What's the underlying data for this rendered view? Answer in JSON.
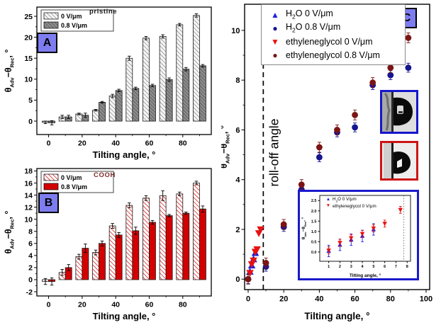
{
  "colors": {
    "badge_fill": "#7d7df0",
    "badge_border": "#000000",
    "bar_red": "#d40000",
    "hatch_gray_bg": "#f5f5f5",
    "hatch_gray_fg": "#666666",
    "dark_bar_bg": "#8c8c8c",
    "dark_bar_fg": "#3a3a3a",
    "water_blue_border": "#1616cc",
    "eg_red_border": "#cc1414",
    "inset_border": "#1a1acc",
    "rolloff_text": "#1a1aee",
    "blue_triangle": "#2121d8",
    "navy_circle": "#15158e",
    "red_triangle": "#e81212",
    "dark_red_circle": "#7c1414",
    "cooh_text": "#7d2b2b",
    "pristine_text": "#1a1a1a"
  },
  "panels": {
    "a": {
      "badge": "A",
      "annotation": "pristine"
    },
    "b": {
      "badge": "B",
      "annotation": "COOH"
    },
    "c": {
      "badge": "C"
    }
  },
  "droplets": {
    "water": {
      "name": "water droplet on tilted surface"
    },
    "ethyleneglycol": {
      "name": "ethyleneglycol droplet on tilted surface"
    }
  },
  "chart_data": [
    {
      "id": "panel-a",
      "type": "bar",
      "title": "pristine",
      "categories": [
        0,
        10,
        20,
        30,
        40,
        50,
        60,
        70,
        80,
        90
      ],
      "series": [
        {
          "name": "0 V/μm",
          "style": "hatch-light",
          "values": [
            -0.3,
            1.0,
            1.7,
            2.6,
            6.0,
            15.0,
            19.8,
            20.2,
            23.0,
            25.2
          ],
          "errors": [
            0.3,
            0.4,
            0.2,
            0.2,
            0.4,
            0.5,
            0.4,
            0.4,
            0.3,
            0.4
          ]
        },
        {
          "name": "0.8 V/μm",
          "style": "hatch-dark",
          "values": [
            -0.4,
            1.0,
            1.4,
            4.5,
            7.3,
            7.8,
            8.5,
            9.9,
            12.4,
            13.2
          ],
          "errors": [
            0.5,
            0.4,
            0.5,
            0.2,
            0.3,
            0.3,
            0.3,
            0.4,
            0.4,
            0.3
          ]
        }
      ],
      "xlabel": "Tilting angle, °",
      "ylabel_parts": [
        {
          "t": "θ"
        },
        {
          "t": "Adv",
          "sub": true
        },
        {
          "t": "−θ"
        },
        {
          "t": "Rec",
          "sub": true
        },
        {
          "t": ", °"
        }
      ],
      "xlim": [
        -7,
        97
      ],
      "ylim": [
        -3.2,
        27.2
      ],
      "yticks": [
        0,
        5,
        10,
        15,
        20,
        25
      ],
      "yminor": [
        2.5,
        7.5,
        12.5,
        17.5,
        22.5
      ],
      "xticks": [
        0,
        20,
        40,
        60,
        80
      ],
      "xminor": [
        10,
        30,
        50,
        70,
        90
      ],
      "legend_box": true
    },
    {
      "id": "panel-b",
      "type": "bar",
      "title": "COOH",
      "categories": [
        0,
        10,
        20,
        30,
        40,
        50,
        60,
        70,
        80,
        90
      ],
      "series": [
        {
          "name": "0 V/μm",
          "style": "hatch-red",
          "values": [
            -0.3,
            1.2,
            3.8,
            4.5,
            8.9,
            12.3,
            13.5,
            13.9,
            14.2,
            16.0
          ],
          "errors": [
            0.5,
            0.5,
            0.4,
            0.4,
            0.4,
            0.4,
            0.4,
            0.8,
            0.3,
            0.3
          ]
        },
        {
          "name": "0.8 V/μm",
          "style": "solid-red",
          "values": [
            -0.3,
            2.0,
            5.2,
            6.0,
            7.4,
            8.1,
            9.5,
            10.6,
            11.0,
            11.7
          ],
          "errors": [
            0.6,
            0.5,
            0.7,
            0.4,
            0.4,
            0.6,
            0.3,
            0.2,
            0.2,
            0.5
          ]
        }
      ],
      "xlabel": "Tilting angle, °",
      "ylabel_parts": [
        {
          "t": "θ"
        },
        {
          "t": "Adv",
          "sub": true
        },
        {
          "t": "−θ"
        },
        {
          "t": "Rec",
          "sub": true
        },
        {
          "t": ", °"
        }
      ],
      "xlim": [
        -7,
        97
      ],
      "ylim": [
        -2.7,
        18.4
      ],
      "yticks": [
        -2,
        0,
        2,
        4,
        6,
        8,
        10,
        12,
        14,
        16,
        18
      ],
      "yminor": [
        -1,
        1,
        3,
        5,
        7,
        9,
        11,
        13,
        15,
        17
      ],
      "xticks": [
        0,
        20,
        40,
        60,
        80
      ],
      "xminor": [
        10,
        30,
        50,
        70,
        90
      ],
      "legend_box": true
    },
    {
      "id": "panel-c",
      "type": "scatter",
      "series": [
        {
          "marker": "triangle-up",
          "color_key": "blue_triangle",
          "label_parts": [
            {
              "t": "H"
            },
            {
              "t": "2",
              "sub": true
            },
            {
              "t": "O 0 V/μm"
            }
          ],
          "x": [
            1,
            2,
            3,
            4
          ],
          "y": [
            0.3,
            0.55,
            0.8,
            1.05
          ],
          "err": 0
        },
        {
          "marker": "circle",
          "color_key": "navy_circle",
          "label_parts": [
            {
              "t": "H"
            },
            {
              "t": "2",
              "sub": true
            },
            {
              "t": "O 0.8 V/μm"
            }
          ],
          "x": [
            0,
            10,
            20,
            30,
            40,
            50,
            60,
            70,
            80,
            90
          ],
          "y": [
            0.0,
            0.5,
            2.1,
            3.6,
            4.9,
            5.9,
            6.1,
            7.8,
            8.2,
            8.5
          ],
          "err": 0.18
        },
        {
          "marker": "triangle-down",
          "color_key": "red_triangle",
          "label_parts": [
            {
              "t": "ethyleneglycol 0 V/μm"
            }
          ],
          "x": [
            1,
            2,
            3,
            4,
            5,
            6,
            7
          ],
          "y": [
            0.25,
            0.6,
            0.75,
            1.1,
            1.2,
            1.85,
            2.0
          ],
          "err": 0
        },
        {
          "marker": "circle",
          "color_key": "dark_red_circle",
          "label_parts": [
            {
              "t": "ethyleneglycol 0.8 V/μm"
            }
          ],
          "x": [
            0,
            10,
            20,
            30,
            40,
            50,
            60,
            70,
            80,
            90
          ],
          "y": [
            0.0,
            0.65,
            2.2,
            3.8,
            5.3,
            6.0,
            6.6,
            7.9,
            8.5,
            9.7
          ],
          "err": 0.2
        }
      ],
      "vline": {
        "x": 8.5,
        "style": "dashed",
        "color": "#000000",
        "label": "roll-off angle",
        "label_color_key": "rolloff_text"
      },
      "xlabel": "Tilting angle, °",
      "ylabel_parts": [
        {
          "t": "θ"
        },
        {
          "t": "Adv",
          "sub": true
        },
        {
          "t": "−θ"
        },
        {
          "t": "Rec",
          "sub": true
        },
        {
          "t": ", °"
        }
      ],
      "xlim": [
        -2,
        102
      ],
      "ylim": [
        -0.42,
        11.05
      ],
      "yticks": [
        0,
        2,
        4,
        6,
        8,
        10
      ],
      "yminor": [
        1,
        3,
        5,
        7,
        9
      ],
      "xticks": [
        0,
        20,
        40,
        60,
        80,
        100
      ],
      "xminor": [
        10,
        30,
        50,
        70,
        90
      ],
      "legend_position": "top-left-overlay"
    },
    {
      "id": "panel-c-inset",
      "type": "scatter",
      "series": [
        {
          "marker": "triangle-up",
          "color_key": "blue_triangle",
          "label_parts": [
            {
              "t": "H"
            },
            {
              "t": "2",
              "sub": true
            },
            {
              "t": "O 0 V/μm"
            }
          ],
          "x": [
            1,
            2,
            3,
            4,
            5
          ],
          "y": [
            0.05,
            0.35,
            0.6,
            0.78,
            1.1
          ],
          "err": 0.28
        },
        {
          "marker": "triangle-down",
          "color_key": "red_triangle",
          "label_parts": [
            {
              "t": "ethyleneglycol 0 V/μm"
            }
          ],
          "x": [
            1,
            2,
            3,
            4,
            5,
            6,
            7.4
          ],
          "y": [
            0.08,
            0.45,
            0.68,
            0.88,
            1.15,
            1.38,
            2.05
          ],
          "err": 0.17
        }
      ],
      "vline": {
        "x": 7.7,
        "style": "dotted",
        "color": "#777777"
      },
      "xlabel": "Tilting angle, °",
      "ylabel_parts": [
        {
          "t": "θ"
        },
        {
          "t": "Adv",
          "sub": true
        },
        {
          "t": "−θ"
        },
        {
          "t": "Rec",
          "sub": true
        },
        {
          "t": ", °"
        }
      ],
      "xlim": [
        0.2,
        8.3
      ],
      "ylim": [
        -0.45,
        2.75
      ],
      "yticks": [
        0,
        0.5,
        1,
        1.5,
        2,
        2.5
      ],
      "ydec": true,
      "xticks": [
        1,
        2,
        3,
        4,
        5,
        6,
        7,
        8
      ]
    }
  ]
}
